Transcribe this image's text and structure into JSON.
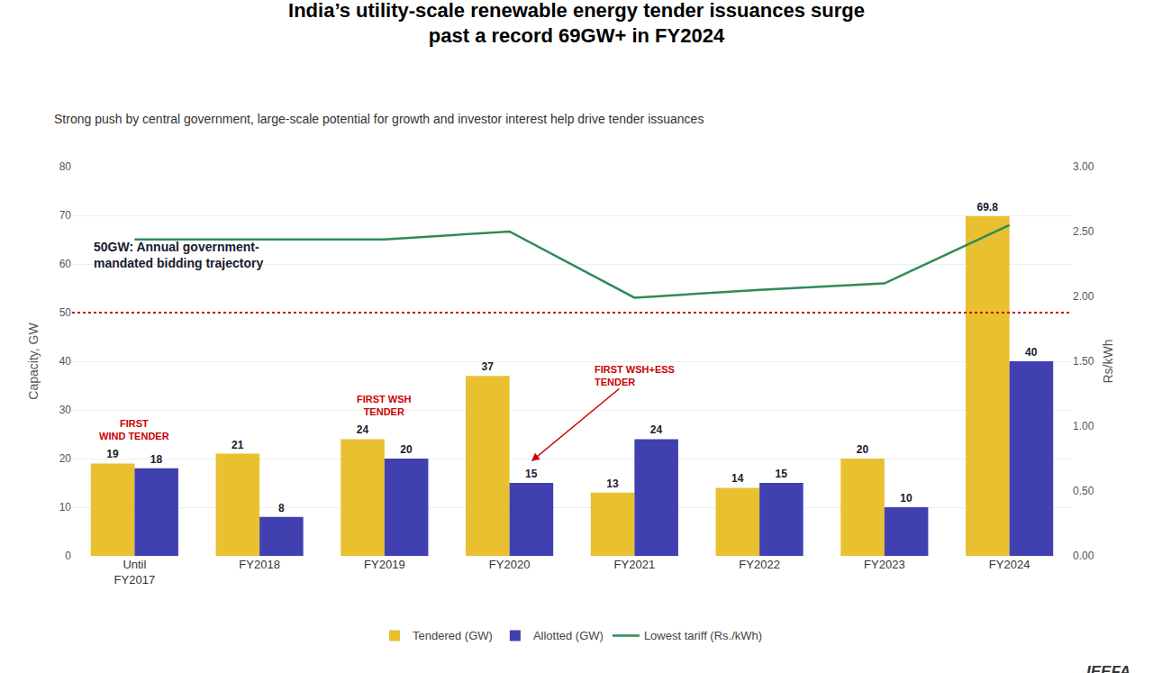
{
  "chart_data": {
    "type": "bar",
    "title": "India’s utility-scale renewable energy tender issuances surge\npast a record 69GW+ in FY2024",
    "subtitle": "Strong push by central government, large-scale potential for growth and investor interest help drive tender issuances",
    "watermark": "IEEFA",
    "categories": [
      "Until\nFY2017",
      "FY2018",
      "FY2019",
      "FY2020",
      "FY2021",
      "FY2022",
      "FY2023",
      "FY2024"
    ],
    "series": [
      {
        "name": "Tendered (GW)",
        "type": "bar",
        "color": "#E8C030",
        "values": [
          19,
          21,
          24,
          37,
          13,
          14,
          20,
          69.8
        ],
        "data_labels": true
      },
      {
        "name": "Allotted (GW)",
        "type": "bar",
        "color": "#4040B0",
        "values": [
          18,
          8,
          20,
          15,
          24,
          15,
          10,
          40
        ],
        "data_labels": true
      },
      {
        "name": "Lowest tariff (Rs./kWh)",
        "type": "line",
        "axis": "y2",
        "color": "#2E8B57",
        "line_style": "solid",
        "values": [
          2.44,
          2.44,
          2.44,
          2.5,
          1.99,
          2.05,
          2.1,
          2.55
        ]
      }
    ],
    "ylabel": "Capacity, GW",
    "y2label": "Rs/kWh",
    "ylim": [
      0,
      80
    ],
    "yticks": [
      0,
      10,
      20,
      30,
      40,
      50,
      60,
      70,
      80
    ],
    "y2lim": [
      0,
      3.0
    ],
    "y2ticks": [
      {
        "value": 0.0,
        "label": "0.00"
      },
      {
        "value": 0.5,
        "label": "0.50"
      },
      {
        "value": 1.0,
        "label": "1.00"
      },
      {
        "value": 1.5,
        "label": "1.50"
      },
      {
        "value": 2.0,
        "label": "2.00"
      },
      {
        "value": 2.5,
        "label": "2.50"
      },
      {
        "value": 3.0,
        "label": "3.00"
      }
    ],
    "hlines": [
      {
        "y": 50,
        "color": "#CC0000",
        "line_style": "dotted",
        "label": "50GW: Annual government-\nmandated bidding trajectory"
      }
    ],
    "annotations": [
      {
        "text": "FIRST\nWIND TENDER",
        "color": "#CC0000",
        "category": "Until\nFY2017"
      },
      {
        "text": "FIRST WSH\nTENDER",
        "color": "#CC0000",
        "category": "FY2019"
      },
      {
        "text": "FIRST WSH+ESS\nTENDER",
        "color": "#CC0000",
        "category": "FY2020",
        "arrow_to": "Allotted (GW)"
      }
    ],
    "grid": true,
    "legend": "bottom"
  }
}
